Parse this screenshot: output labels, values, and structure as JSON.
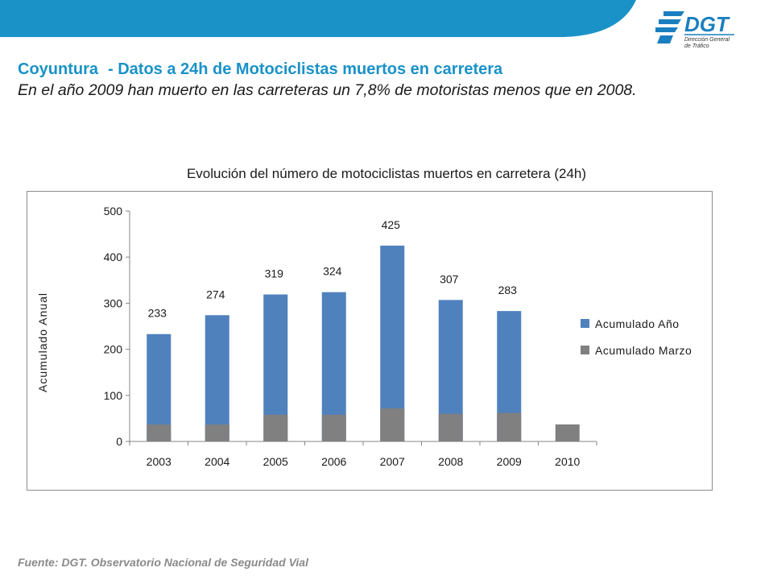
{
  "header": {
    "title_main": "Coyuntura",
    "title_rest": "- Datos a 24h de Motociclistas muertos en carretera",
    "subtitle": "En el año 2009 han muerto en las carreteras un 7,8% de motoristas menos que en 2008."
  },
  "logo": {
    "text": "DGT",
    "line1": "Dirección General",
    "line2": "de Tráfico"
  },
  "source": "Fuente: DGT. Observatorio Nacional de Seguridad Vial",
  "colors": {
    "accent": "#1a92c8",
    "series_year": "#4f81bd",
    "series_march": "#808080"
  },
  "chart_data": {
    "type": "bar",
    "title": "Evolución del número de motociclistas muertos en carretera (24h)",
    "xlabel": "",
    "ylabel": "Acumulado Anual",
    "categories": [
      "2003",
      "2004",
      "2005",
      "2006",
      "2007",
      "2008",
      "2009",
      "2010"
    ],
    "series": [
      {
        "name": "Acumulado Año",
        "values": [
          233,
          274,
          319,
          324,
          425,
          307,
          283,
          null
        ],
        "labels": [
          "233",
          "274",
          "319",
          "324",
          "425",
          "307",
          "283",
          ""
        ]
      },
      {
        "name": "Acumulado Marzo",
        "values": [
          37,
          37,
          58,
          58,
          72,
          60,
          62,
          37
        ]
      }
    ],
    "ylim": [
      0,
      500
    ],
    "yticks": [
      "0",
      "100",
      "200",
      "300",
      "400",
      "500"
    ],
    "grid": false,
    "legend_position": "right",
    "overlay": true
  }
}
